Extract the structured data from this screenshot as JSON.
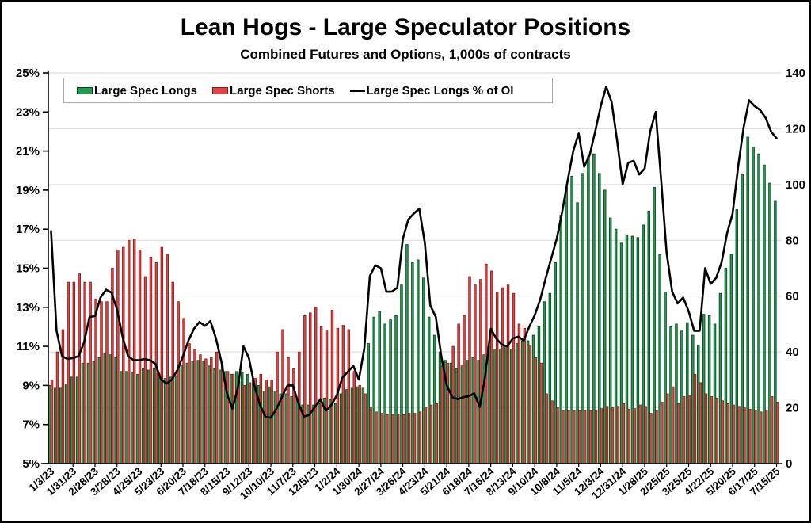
{
  "header": {
    "title": "Lean Hogs - Large Speculator Positions",
    "subtitle": "Combined Futures and Options, 1,000s of contracts"
  },
  "legend": {
    "longs_label": "Large Spec Longs",
    "shorts_label": "Large Spec Shorts",
    "line_label": "Large Spec Longs % of OI"
  },
  "colors": {
    "long_fill": "#1f9e4e",
    "long_stroke": "#0d3b20",
    "short_fill": "#e04545",
    "short_stroke": "#7e1c1c",
    "line": "#000000",
    "grid": "#d9d9d9",
    "axis": "#000000",
    "text": "#000000"
  },
  "chart_data": {
    "type": "combo-grouped-bar-and-line",
    "title": "Lean Hogs - Large Speculator Positions",
    "subtitle": "Combined Futures and Options, 1,000s of contracts",
    "grid": "horizontal gridlines at right-axis steps",
    "legend_position": "top-left inside plot",
    "x": [
      "1/3/23",
      "1/10/23",
      "1/17/23",
      "1/24/23",
      "1/31/23",
      "2/7/23",
      "2/14/23",
      "2/21/23",
      "2/28/23",
      "3/7/23",
      "3/14/23",
      "3/21/23",
      "3/28/23",
      "4/4/23",
      "4/11/23",
      "4/18/23",
      "4/25/23",
      "5/2/23",
      "5/9/23",
      "5/16/23",
      "5/23/23",
      "5/30/23",
      "6/6/23",
      "6/13/23",
      "6/20/23",
      "6/27/23",
      "7/4/23",
      "7/11/23",
      "7/18/23",
      "7/25/23",
      "8/1/23",
      "8/8/23",
      "8/15/23",
      "8/22/23",
      "8/29/23",
      "9/5/23",
      "9/12/23",
      "9/19/23",
      "9/26/23",
      "10/3/23",
      "10/10/23",
      "10/17/23",
      "10/24/23",
      "10/31/23",
      "11/7/23",
      "11/14/23",
      "11/21/23",
      "11/28/23",
      "12/5/23",
      "12/12/23",
      "12/19/23",
      "12/26/23",
      "1/2/24",
      "1/9/24",
      "1/16/24",
      "1/23/24",
      "1/30/24",
      "2/6/24",
      "2/13/24",
      "2/20/24",
      "2/27/24",
      "3/5/24",
      "3/12/24",
      "3/19/24",
      "3/26/24",
      "4/2/24",
      "4/9/24",
      "4/16/24",
      "4/23/24",
      "4/30/24",
      "5/7/24",
      "5/14/24",
      "5/21/24",
      "5/28/24",
      "6/4/24",
      "6/11/24",
      "6/18/24",
      "6/25/24",
      "7/2/24",
      "7/9/24",
      "7/16/24",
      "7/23/24",
      "7/30/24",
      "8/6/24",
      "8/13/24",
      "8/20/24",
      "8/27/24",
      "9/3/24",
      "9/10/24",
      "9/17/24",
      "9/24/24",
      "10/1/24",
      "10/8/24",
      "10/15/24",
      "10/22/24",
      "10/29/24",
      "11/5/24",
      "11/12/24",
      "11/19/24",
      "11/26/24",
      "12/3/24",
      "12/10/24",
      "12/17/24",
      "12/24/24",
      "12/31/24",
      "1/7/25",
      "1/14/25",
      "1/21/25",
      "1/28/25",
      "2/4/25",
      "2/11/25",
      "2/18/25",
      "2/25/25",
      "3/4/25",
      "3/11/25",
      "3/18/25",
      "3/25/25",
      "4/1/25",
      "4/8/25",
      "4/15/25",
      "4/22/25",
      "4/29/25",
      "5/6/25",
      "5/13/25",
      "5/20/25",
      "5/27/25",
      "6/3/25",
      "6/10/25",
      "6/17/25",
      "6/24/25",
      "7/1/25",
      "7/8/25",
      "7/15/25"
    ],
    "x_tick_labels": [
      "1/3/23",
      "1/31/23",
      "2/28/23",
      "3/28/23",
      "4/25/23",
      "5/23/23",
      "6/20/23",
      "7/18/23",
      "8/15/23",
      "9/12/23",
      "10/10/23",
      "11/7/23",
      "12/5/23",
      "1/2/24",
      "1/30/24",
      "2/27/24",
      "3/26/24",
      "4/23/24",
      "5/21/24",
      "6/18/24",
      "7/16/24",
      "8/13/24",
      "9/10/24",
      "10/8/24",
      "11/5/24",
      "12/3/24",
      "12/31/24",
      "1/28/25",
      "2/25/25",
      "3/25/25",
      "4/22/25",
      "5/20/25",
      "6/17/25",
      "7/15/25"
    ],
    "series": [
      {
        "name": "Large Spec Longs",
        "type": "bar",
        "axis": "right",
        "color": "#1f9e4e",
        "values": [
          28,
          27,
          27,
          28.5,
          31,
          31,
          36,
          36,
          36.5,
          38,
          39.5,
          39,
          38,
          33,
          33,
          32.5,
          32,
          34,
          33.5,
          34,
          31,
          30.5,
          31,
          31.5,
          35,
          36,
          36.5,
          37,
          36.5,
          35,
          34,
          33.5,
          33,
          32,
          33,
          32.5,
          32,
          30,
          28,
          26,
          27.5,
          26,
          25,
          25,
          24,
          23,
          21,
          21,
          21,
          21.5,
          23.5,
          23,
          21.5,
          25,
          26.5,
          27,
          27.5,
          27,
          43,
          52.5,
          54.5,
          50,
          51.5,
          53,
          64,
          78.5,
          72,
          73,
          66.5,
          52.5,
          46,
          40,
          37,
          36,
          34,
          35,
          37,
          38,
          37,
          39,
          42,
          41,
          41,
          42,
          41,
          43,
          44,
          44,
          46,
          49,
          58,
          61,
          72,
          89,
          99,
          103,
          93.5,
          104,
          110,
          111,
          104,
          98,
          88,
          84,
          79,
          82,
          81.5,
          81,
          85.5,
          90.5,
          99,
          75,
          61.5,
          49,
          50,
          47.5,
          50.5,
          46,
          42.5,
          53.5,
          53,
          50,
          61,
          70,
          75,
          91,
          103.5,
          117,
          113.5,
          111,
          107,
          100.5,
          94
        ]
      },
      {
        "name": "Large Spec Shorts",
        "type": "bar",
        "axis": "right",
        "color": "#e04545",
        "values": [
          30,
          40,
          48,
          65,
          65,
          68,
          65,
          65,
          59,
          58,
          58,
          70,
          76.5,
          77.5,
          80,
          80.5,
          76.5,
          67,
          74,
          72,
          77.5,
          75,
          65,
          58,
          52,
          43,
          41,
          39,
          37.5,
          38,
          40,
          35,
          33,
          32,
          29.5,
          28,
          29,
          30.5,
          32,
          30,
          30,
          40,
          48,
          38,
          34,
          40,
          53,
          54,
          56,
          49,
          47.5,
          55,
          48.5,
          49.5,
          48,
          33,
          28,
          25,
          20,
          18.5,
          18,
          17.5,
          17.5,
          17.5,
          17.5,
          18,
          18,
          18.5,
          20,
          21,
          21.5,
          35,
          36,
          42,
          50,
          53,
          67,
          64,
          66,
          71.5,
          69,
          61.5,
          63,
          64,
          61,
          50,
          48.5,
          42.5,
          38,
          36,
          25,
          22.5,
          20,
          19,
          19,
          19,
          19,
          19,
          19,
          19,
          19.7,
          20.5,
          20,
          20.5,
          21.5,
          19.5,
          19.7,
          21,
          20.5,
          18,
          19,
          22,
          25,
          27.5,
          21.5,
          24,
          24.5,
          32,
          29,
          25,
          24,
          23.5,
          22.5,
          21.5,
          21,
          20.5,
          20,
          19.5,
          19,
          18.5,
          19,
          24,
          22
        ]
      },
      {
        "name": "Large Spec Longs % of OI",
        "type": "line",
        "axis": "left",
        "color": "#000000",
        "values": [
          16.9,
          11.8,
          10.5,
          10.35,
          10.4,
          10.5,
          11.2,
          12.5,
          12.55,
          13.5,
          13.9,
          13.75,
          12.9,
          11.5,
          10.5,
          10.3,
          10.3,
          10.35,
          10.3,
          10.1,
          9.3,
          9.1,
          9.3,
          9.8,
          10.5,
          11.3,
          11.9,
          12.25,
          12.05,
          12.3,
          11.4,
          10.2,
          8.6,
          7.8,
          8.9,
          11.0,
          10.4,
          9.0,
          8.0,
          7.4,
          7.35,
          7.8,
          8.4,
          9.0,
          9.0,
          8.1,
          7.4,
          7.5,
          7.9,
          8.3,
          7.7,
          8.0,
          8.5,
          9.4,
          9.7,
          10.0,
          9.3,
          10.9,
          14.6,
          15.15,
          15.0,
          13.8,
          13.8,
          14.0,
          16.5,
          17.5,
          17.8,
          18.05,
          16.3,
          13.1,
          12.5,
          10.5,
          9.0,
          8.4,
          8.3,
          8.4,
          8.45,
          8.6,
          7.9,
          9.5,
          11.9,
          11.4,
          11.1,
          11.0,
          11.4,
          11.5,
          11.3,
          12.0,
          12.6,
          13.4,
          14.5,
          15.5,
          16.5,
          17.9,
          19.5,
          21.0,
          21.9,
          20.2,
          20.8,
          22.0,
          23.3,
          24.3,
          23.5,
          21.5,
          19.3,
          20.4,
          20.5,
          19.8,
          20.1,
          22.0,
          23.0,
          19.5,
          15.8,
          13.8,
          13.2,
          13.5,
          12.8,
          11.8,
          11.8,
          15.0,
          14.2,
          14.5,
          15.3,
          16.8,
          17.8,
          20.2,
          22.2,
          23.6,
          23.3,
          23.1,
          22.7,
          22.0,
          21.65
        ]
      }
    ],
    "left_axis": {
      "min": 5,
      "max": 25,
      "step": 2,
      "unit": "%",
      "tick_labels_top_to_bottom": [
        "25%",
        "23%",
        "21%",
        "19%",
        "17%",
        "15%",
        "13%",
        "11%",
        "9%",
        "7%",
        "5%"
      ]
    },
    "right_axis": {
      "min": 0,
      "max": 140,
      "step": 20,
      "tick_labels_top_to_bottom": [
        "140",
        "120",
        "100",
        "80",
        "60",
        "40",
        "20",
        "0"
      ]
    }
  }
}
